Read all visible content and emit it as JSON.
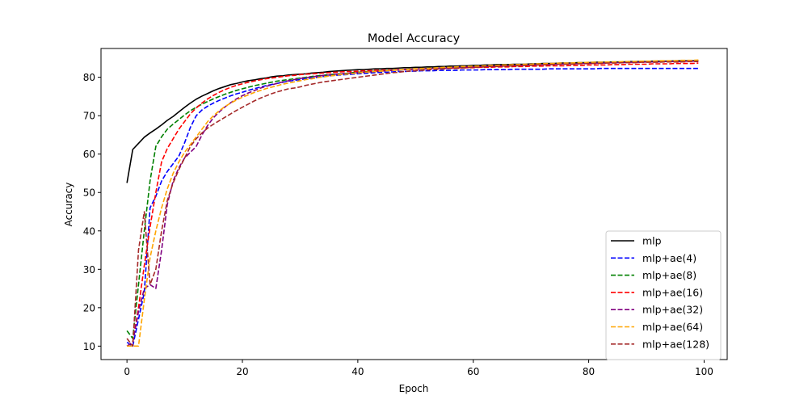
{
  "chart_data": {
    "type": "line",
    "title": "Model Accuracy",
    "xlabel": "Epoch",
    "ylabel": "Accuracy",
    "xlim": [
      -4.5,
      104
    ],
    "ylim": [
      6.5,
      87.5
    ],
    "xticks": [
      0,
      20,
      40,
      60,
      80,
      100
    ],
    "yticks": [
      10,
      20,
      30,
      40,
      50,
      60,
      70,
      80
    ],
    "grid": false,
    "legend_position": "lower-right",
    "x": [
      0,
      1,
      2,
      3,
      4,
      5,
      6,
      7,
      8,
      9,
      10,
      11,
      12,
      13,
      14,
      15,
      16,
      17,
      18,
      19,
      20,
      21,
      22,
      23,
      24,
      25,
      26,
      27,
      28,
      29,
      30,
      31,
      32,
      33,
      34,
      35,
      36,
      37,
      38,
      39,
      40,
      41,
      42,
      43,
      44,
      45,
      46,
      47,
      48,
      49,
      50,
      51,
      52,
      53,
      54,
      55,
      56,
      57,
      58,
      59,
      60,
      61,
      62,
      63,
      64,
      65,
      66,
      67,
      68,
      69,
      70,
      71,
      72,
      73,
      74,
      75,
      76,
      77,
      78,
      79,
      80,
      81,
      82,
      83,
      84,
      85,
      86,
      87,
      88,
      89,
      90,
      91,
      92,
      93,
      94,
      95,
      96,
      97,
      98,
      99
    ],
    "series": [
      {
        "name": "mlp",
        "color": "#000000",
        "dashed": false,
        "values": [
          52.5,
          61.2,
          62.8,
          64.4,
          65.5,
          66.5,
          67.6,
          68.8,
          69.8,
          71.0,
          72.2,
          73.3,
          74.3,
          75.1,
          75.8,
          76.5,
          77.1,
          77.6,
          78.1,
          78.4,
          78.8,
          79.1,
          79.3,
          79.6,
          79.8,
          80.1,
          80.3,
          80.4,
          80.6,
          80.7,
          80.8,
          80.9,
          81.1,
          81.2,
          81.3,
          81.5,
          81.6,
          81.7,
          81.8,
          81.9,
          82.0,
          82.0,
          82.1,
          82.2,
          82.2,
          82.3,
          82.3,
          82.4,
          82.5,
          82.5,
          82.6,
          82.6,
          82.7,
          82.7,
          82.8,
          82.8,
          82.9,
          82.9,
          83.0,
          83.0,
          83.1,
          83.1,
          83.2,
          83.2,
          83.3,
          83.3,
          83.3,
          83.4,
          83.4,
          83.4,
          83.5,
          83.5,
          83.6,
          83.6,
          83.6,
          83.7,
          83.7,
          83.7,
          83.8,
          83.8,
          83.8,
          83.9,
          83.9,
          83.9,
          84.0,
          84.0,
          84.0,
          84.1,
          84.1,
          84.1,
          84.1,
          84.2,
          84.2,
          84.2,
          84.2,
          84.3,
          84.3,
          84.3,
          84.3,
          84.4
        ]
      },
      {
        "name": "mlp+ae(4)",
        "color": "#0000ff",
        "dashed": true,
        "values": [
          11.0,
          10.0,
          17.0,
          24.0,
          46.0,
          49.0,
          53.0,
          55.5,
          57.5,
          59.5,
          63.0,
          67.0,
          70.0,
          71.5,
          72.5,
          73.3,
          74.0,
          74.6,
          75.2,
          75.7,
          76.1,
          76.6,
          77.0,
          77.4,
          77.8,
          78.1,
          78.4,
          78.7,
          79.0,
          79.2,
          79.4,
          79.6,
          79.8,
          80.0,
          80.2,
          80.4,
          80.5,
          80.6,
          80.7,
          80.8,
          80.9,
          81.0,
          81.1,
          81.2,
          81.3,
          81.3,
          81.4,
          81.5,
          81.5,
          81.6,
          81.6,
          81.7,
          81.7,
          81.7,
          81.8,
          81.8,
          81.8,
          81.8,
          81.9,
          81.9,
          81.9,
          81.9,
          82.0,
          82.0,
          82.0,
          82.0,
          82.0,
          82.1,
          82.1,
          82.1,
          82.1,
          82.1,
          82.1,
          82.2,
          82.2,
          82.2,
          82.2,
          82.2,
          82.2,
          82.2,
          82.2,
          82.2,
          82.3,
          82.3,
          82.3,
          82.3,
          82.3,
          82.3,
          82.3,
          82.3,
          82.3,
          82.3,
          82.3,
          82.3,
          82.3,
          82.3,
          82.3,
          82.3,
          82.3,
          82.3
        ]
      },
      {
        "name": "mlp+ae(8)",
        "color": "#008000",
        "dashed": true,
        "values": [
          14.0,
          12.0,
          26.0,
          40.0,
          53.0,
          62.0,
          64.5,
          66.5,
          67.8,
          69.0,
          70.2,
          71.3,
          72.2,
          73.0,
          73.7,
          74.4,
          75.0,
          75.6,
          76.1,
          76.6,
          77.0,
          77.4,
          77.8,
          78.1,
          78.4,
          78.7,
          79.0,
          79.2,
          79.4,
          79.6,
          79.8,
          80.0,
          80.2,
          80.4,
          80.5,
          80.7,
          80.8,
          80.9,
          81.0,
          81.2,
          81.3,
          81.4,
          81.5,
          81.6,
          81.7,
          81.8,
          81.9,
          81.9,
          82.0,
          82.1,
          82.2,
          82.2,
          82.3,
          82.4,
          82.4,
          82.5,
          82.5,
          82.6,
          82.7,
          82.7,
          82.8,
          82.8,
          82.9,
          82.9,
          83.0,
          83.0,
          83.1,
          83.1,
          83.2,
          83.2,
          83.3,
          83.3,
          83.4,
          83.4,
          83.5,
          83.5,
          83.5,
          83.6,
          83.6,
          83.7,
          83.7,
          83.7,
          83.8,
          83.8,
          83.9,
          83.9,
          83.9,
          84.0,
          84.0,
          84.0,
          84.1,
          84.1,
          84.1,
          84.2,
          84.2,
          84.2,
          84.3,
          84.3,
          84.3,
          84.4
        ]
      },
      {
        "name": "mlp+ae(16)",
        "color": "#ff0000",
        "dashed": true,
        "values": [
          10.0,
          11.0,
          20.0,
          31.0,
          41.0,
          50.0,
          58.0,
          61.5,
          64.0,
          66.5,
          68.5,
          70.5,
          72.0,
          73.3,
          74.4,
          75.3,
          76.1,
          76.8,
          77.4,
          77.9,
          78.3,
          78.7,
          79.0,
          79.3,
          79.6,
          79.8,
          80.0,
          80.2,
          80.4,
          80.5,
          80.7,
          80.8,
          80.9,
          81.0,
          81.1,
          81.2,
          81.3,
          81.4,
          81.5,
          81.5,
          81.6,
          81.7,
          81.7,
          81.8,
          81.8,
          81.9,
          81.9,
          82.0,
          82.0,
          82.1,
          82.1,
          82.2,
          82.2,
          82.3,
          82.3,
          82.3,
          82.4,
          82.4,
          82.5,
          82.5,
          82.5,
          82.6,
          82.6,
          82.6,
          82.7,
          82.7,
          82.7,
          82.8,
          82.8,
          82.8,
          82.9,
          82.9,
          82.9,
          83.0,
          83.0,
          83.0,
          83.0,
          83.1,
          83.1,
          83.1,
          83.2,
          83.2,
          83.2,
          83.2,
          83.3,
          83.3,
          83.3,
          83.4,
          83.4,
          83.4,
          83.4,
          83.5,
          83.5,
          83.5,
          83.5,
          83.6,
          83.6,
          83.6,
          83.6,
          83.7
        ]
      },
      {
        "name": "mlp+ae(32)",
        "color": "#800080",
        "dashed": true,
        "values": [
          10.0,
          11.0,
          19.0,
          25.0,
          26.0,
          25.0,
          35.0,
          47.0,
          53.0,
          56.5,
          59.0,
          60.5,
          62.0,
          65.0,
          67.5,
          69.5,
          71.0,
          72.3,
          73.4,
          74.4,
          75.2,
          75.9,
          76.5,
          77.1,
          77.6,
          78.0,
          78.4,
          78.8,
          79.1,
          79.4,
          79.7,
          79.9,
          80.1,
          80.3,
          80.5,
          80.6,
          80.8,
          80.9,
          81.0,
          81.1,
          81.2,
          81.3,
          81.4,
          81.5,
          81.6,
          81.7,
          81.8,
          81.9,
          82.0,
          82.0,
          82.1,
          82.2,
          82.2,
          82.3,
          82.4,
          82.4,
          82.5,
          82.6,
          82.6,
          82.7,
          82.7,
          82.8,
          82.8,
          82.9,
          82.9,
          83.0,
          83.0,
          83.1,
          83.1,
          83.2,
          83.2,
          83.3,
          83.3,
          83.3,
          83.4,
          83.4,
          83.5,
          83.5,
          83.5,
          83.6,
          83.6,
          83.7,
          83.7,
          83.7,
          83.8,
          83.8,
          83.8,
          83.9,
          83.9,
          83.9,
          84.0,
          84.0,
          84.0,
          84.1,
          84.1,
          84.1,
          84.1,
          84.2,
          84.2,
          84.2
        ]
      },
      {
        "name": "mlp+ae(64)",
        "color": "#ffa500",
        "dashed": true,
        "values": [
          10.0,
          10.0,
          10.0,
          22.0,
          33.0,
          40.0,
          46.0,
          51.0,
          55.0,
          58.0,
          60.5,
          62.5,
          64.5,
          66.5,
          68.5,
          70.0,
          71.3,
          72.4,
          73.3,
          74.1,
          74.8,
          75.4,
          76.0,
          76.5,
          77.0,
          77.4,
          77.8,
          78.2,
          78.5,
          78.8,
          79.1,
          79.4,
          79.6,
          79.9,
          80.1,
          80.3,
          80.5,
          80.7,
          80.8,
          81.0,
          81.1,
          81.3,
          81.4,
          81.5,
          81.6,
          81.7,
          81.8,
          81.9,
          82.0,
          82.1,
          82.2,
          82.3,
          82.3,
          82.4,
          82.5,
          82.6,
          82.6,
          82.7,
          82.8,
          82.8,
          82.9,
          82.9,
          83.0,
          83.1,
          83.1,
          83.2,
          83.2,
          83.3,
          83.3,
          83.4,
          83.4,
          83.5,
          83.5,
          83.6,
          83.6,
          83.7,
          83.7,
          83.7,
          83.8,
          83.8,
          83.9,
          83.9,
          83.9,
          84.0,
          84.0,
          84.0,
          84.1,
          84.1,
          84.1,
          84.2,
          84.2,
          84.2,
          84.3,
          84.3,
          84.3,
          84.3,
          84.4,
          84.4,
          84.4,
          84.5
        ]
      },
      {
        "name": "mlp+ae(128)",
        "color": "#a52a2a",
        "dashed": true,
        "values": [
          12.0,
          10.0,
          35.0,
          45.0,
          26.0,
          30.0,
          40.0,
          48.0,
          52.5,
          56.0,
          59.0,
          62.0,
          64.0,
          65.5,
          66.8,
          67.8,
          68.7,
          69.6,
          70.5,
          71.4,
          72.2,
          73.0,
          73.8,
          74.5,
          75.1,
          75.7,
          76.2,
          76.6,
          77.0,
          77.2,
          77.5,
          77.9,
          78.2,
          78.5,
          78.8,
          79.0,
          79.2,
          79.4,
          79.6,
          79.8,
          80.0,
          80.2,
          80.4,
          80.6,
          80.8,
          81.0,
          81.2,
          81.3,
          81.5,
          81.6,
          81.7,
          81.8,
          81.9,
          82.0,
          82.1,
          82.2,
          82.3,
          82.3,
          82.4,
          82.5,
          82.6,
          82.6,
          82.7,
          82.8,
          82.8,
          82.9,
          82.9,
          83.0,
          83.0,
          83.1,
          83.1,
          83.2,
          83.2,
          83.3,
          83.3,
          83.4,
          83.4,
          83.4,
          83.5,
          83.5,
          83.6,
          83.6,
          83.6,
          83.7,
          83.7,
          83.7,
          83.8,
          83.8,
          83.8,
          83.9,
          83.9,
          83.9,
          83.9,
          84.0,
          84.0,
          84.0,
          84.0,
          84.1,
          84.1,
          84.1
        ]
      }
    ]
  }
}
